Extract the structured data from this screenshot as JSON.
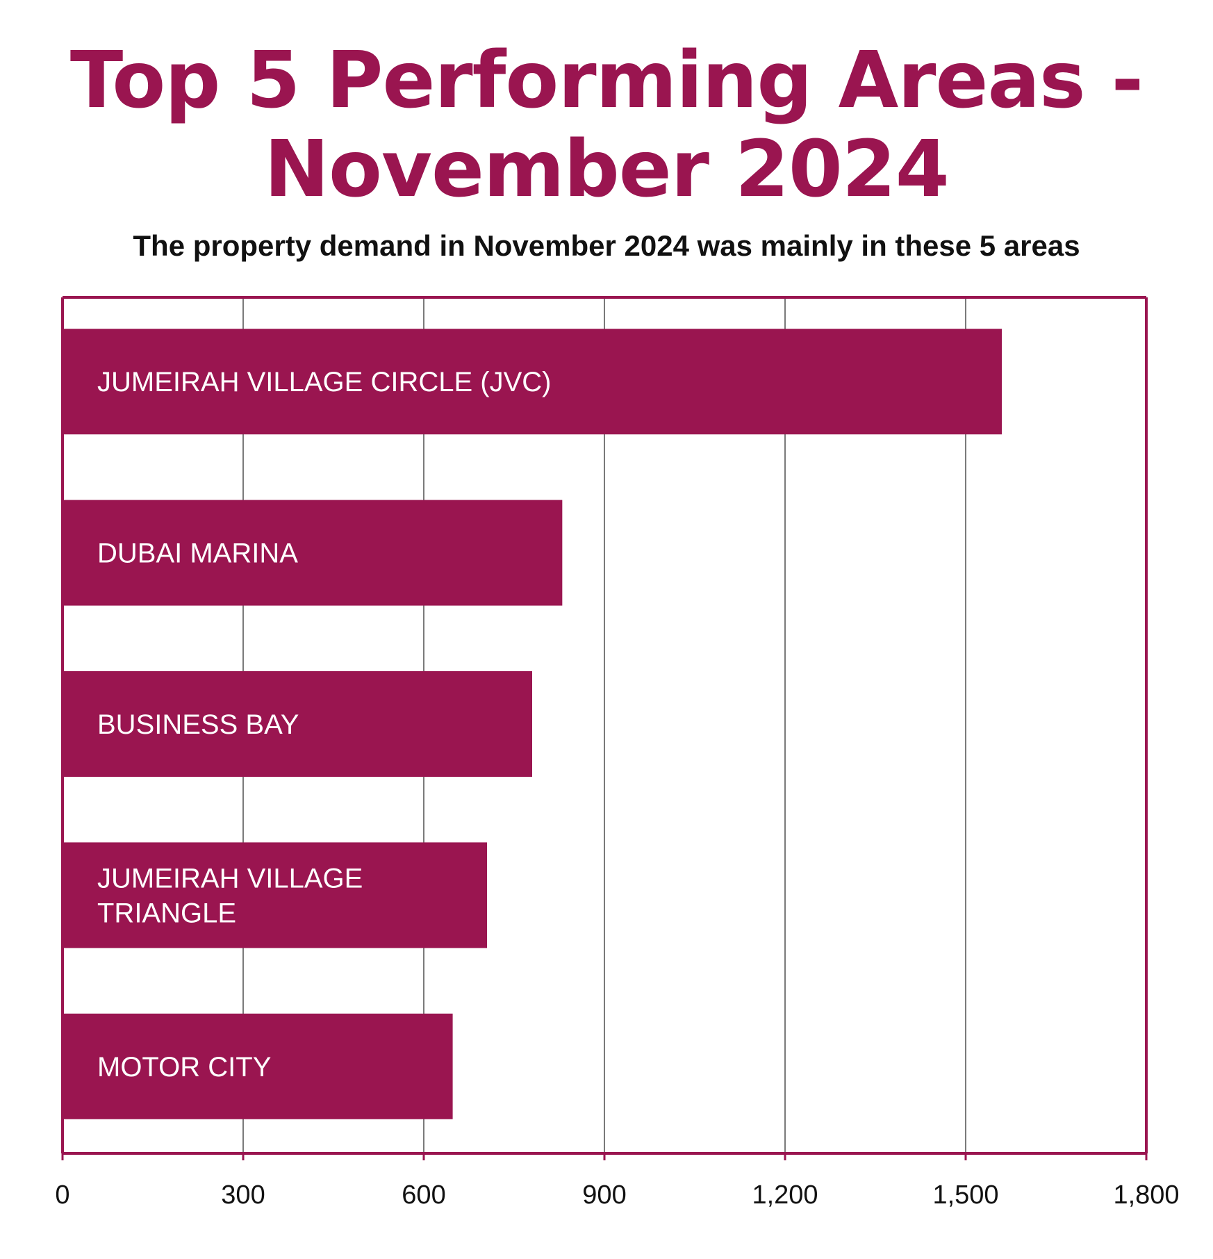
{
  "chart_data": {
    "type": "bar",
    "orientation": "horizontal",
    "title_line1": "Top 5 Performing Areas -",
    "title_line2": "November 2024",
    "subtitle": "The property demand in November 2024 was mainly in these 5 areas",
    "categories": [
      "JUMEIRAH VILLAGE CIRCLE (JVC)",
      "DUBAI MARINA",
      "BUSINESS BAY",
      "JUMEIRAH VILLAGE TRIANGLE",
      "MOTOR CITY"
    ],
    "values": [
      1560,
      830,
      780,
      705,
      648
    ],
    "xlim": [
      0,
      1800
    ],
    "xticks": [
      0,
      300,
      600,
      900,
      1200,
      1500,
      1800
    ],
    "xtick_labels": [
      "0",
      "300",
      "600",
      "900",
      "1,200",
      "1,500",
      "1,800"
    ],
    "grid": true,
    "bar_color": "#9a1550",
    "frame_color": "#9a1550",
    "grid_color": "#7a7a7a"
  }
}
